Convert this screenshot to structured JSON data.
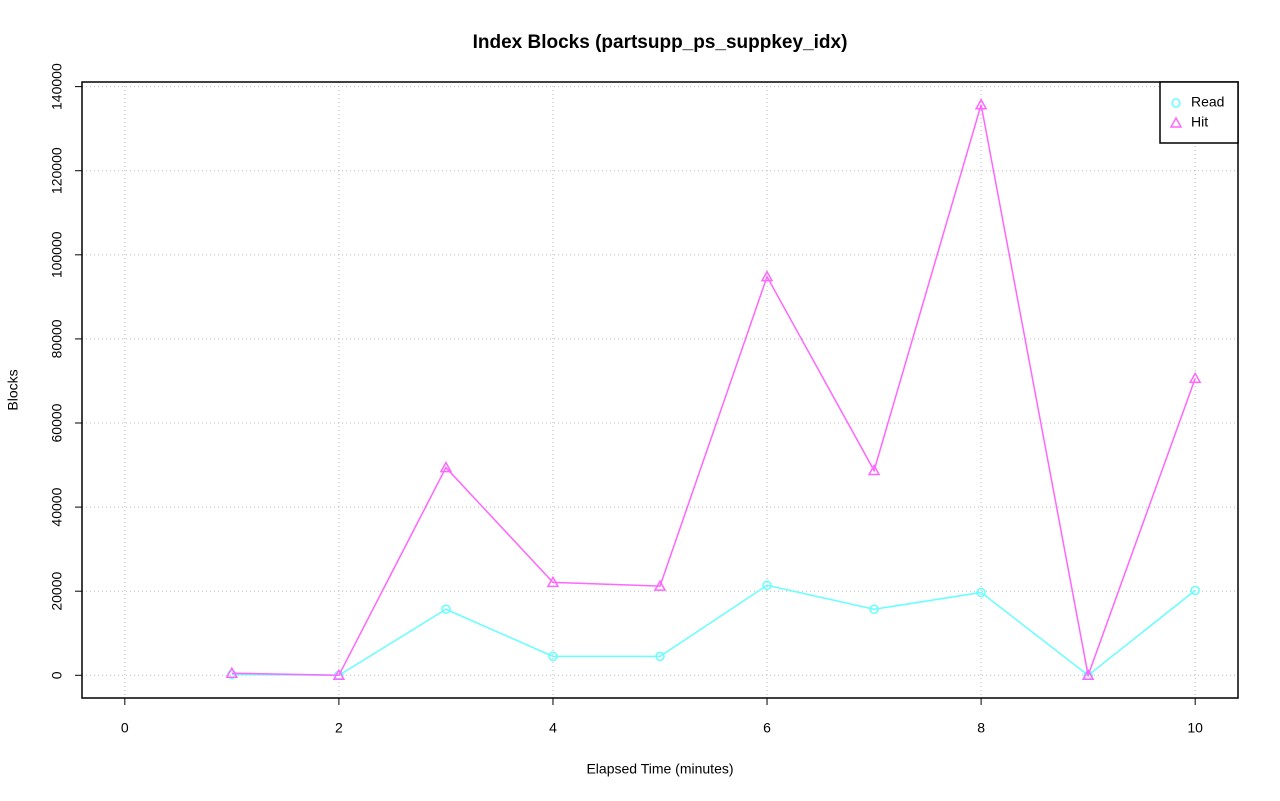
{
  "chart_data": {
    "type": "line",
    "title": "Index Blocks (partsupp_ps_suppkey_idx)",
    "x_label": "Elapsed Time (minutes)",
    "y_label": "Blocks",
    "x": [
      1,
      2,
      3,
      4,
      5,
      6,
      7,
      8,
      9,
      10
    ],
    "series": [
      {
        "name": "Read",
        "color": "#66ffff",
        "marker": "circle",
        "values": [
          200,
          0,
          15700,
          4500,
          4500,
          21400,
          15700,
          19700,
          0,
          20200
        ]
      },
      {
        "name": "Hit",
        "color": "#ff66ff",
        "marker": "triangle",
        "values": [
          500,
          0,
          49400,
          22100,
          21200,
          94800,
          48700,
          135700,
          0,
          70600
        ]
      }
    ],
    "xlim": [
      -0.4,
      10.4
    ],
    "xticks": [
      0,
      2,
      4,
      6,
      8,
      10
    ],
    "ylim": [
      -5400,
      141100
    ],
    "yticks": [
      0,
      20000,
      40000,
      60000,
      80000,
      100000,
      120000,
      140000
    ],
    "grid": true,
    "legend": "topright"
  }
}
